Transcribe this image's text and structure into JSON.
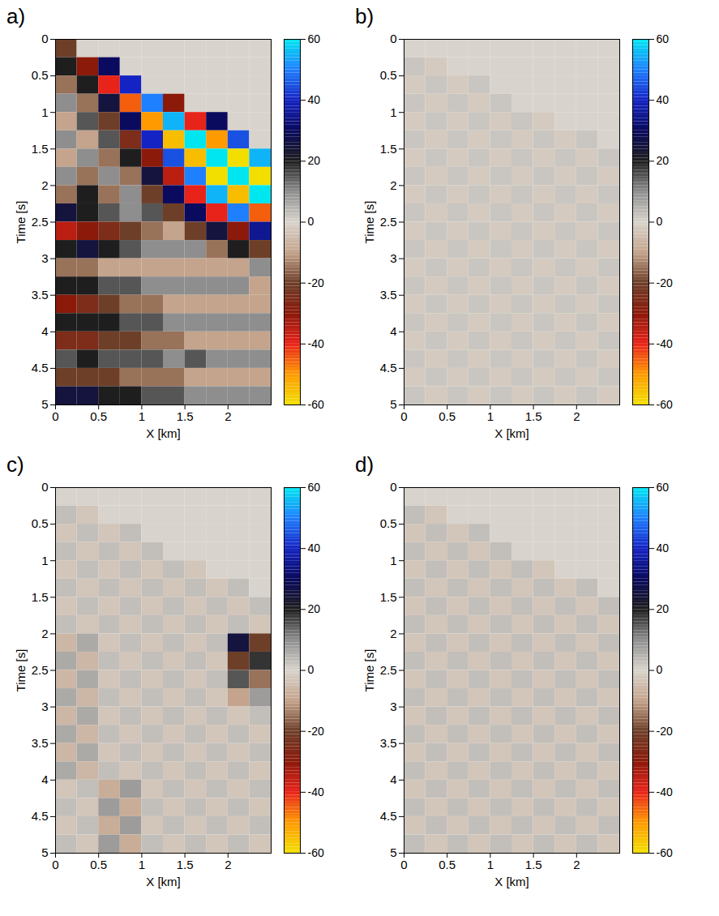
{
  "chart_data": [
    {
      "type": "heatmap",
      "label": "a)",
      "xlabel": "X [km]",
      "ylabel": "Time [s]",
      "xlim": [
        0,
        2.5
      ],
      "xticks": [
        0,
        0.5,
        1,
        1.5,
        2
      ],
      "ylim": [
        0,
        5
      ],
      "yticks": [
        0,
        0.5,
        1,
        1.5,
        2,
        2.5,
        3,
        3.5,
        4,
        4.5,
        5
      ],
      "x_bins": [
        0,
        0.25,
        0.5,
        0.75,
        1,
        1.25,
        1.5,
        1.75,
        2,
        2.25,
        2.5
      ],
      "y_bins": [
        0,
        0.25,
        0.5,
        0.75,
        1,
        1.25,
        1.5,
        1.75,
        2,
        2.25,
        2.5,
        2.75,
        3,
        3.25,
        3.5,
        3.75,
        4,
        4.25,
        4.5,
        4.75,
        5
      ],
      "cells": [
        [
          -20,
          0,
          0,
          0,
          0,
          0,
          0,
          0,
          0,
          0
        ],
        [
          20,
          -30,
          30,
          0,
          0,
          0,
          0,
          0,
          0,
          0
        ],
        [
          -15,
          20,
          -40,
          40,
          0,
          0,
          0,
          0,
          0,
          0
        ],
        [
          10,
          -15,
          25,
          -45,
          50,
          -30,
          0,
          0,
          0,
          0
        ],
        [
          -10,
          15,
          -20,
          30,
          -50,
          55,
          -40,
          30,
          0,
          0
        ],
        [
          10,
          -10,
          15,
          -25,
          40,
          -55,
          60,
          -50,
          45,
          0
        ],
        [
          -10,
          10,
          -15,
          20,
          -30,
          45,
          -55,
          60,
          -60,
          55
        ],
        [
          10,
          -15,
          10,
          -15,
          25,
          -35,
          50,
          -60,
          60,
          -60
        ],
        [
          -15,
          20,
          -15,
          10,
          -20,
          30,
          -40,
          55,
          -55,
          60
        ],
        [
          25,
          20,
          15,
          10,
          15,
          -20,
          30,
          -40,
          50,
          -45
        ],
        [
          -35,
          -30,
          -25,
          -20,
          -15,
          -10,
          -20,
          25,
          -30,
          35
        ],
        [
          20,
          25,
          20,
          15,
          10,
          10,
          10,
          -15,
          20,
          -20
        ],
        [
          -15,
          -15,
          -10,
          -10,
          -10,
          -10,
          -10,
          -10,
          -10,
          10
        ],
        [
          20,
          20,
          15,
          15,
          10,
          10,
          10,
          10,
          10,
          -10
        ],
        [
          -30,
          -25,
          -20,
          -15,
          -15,
          -10,
          -10,
          -10,
          -10,
          -10
        ],
        [
          20,
          20,
          20,
          15,
          15,
          10,
          10,
          10,
          10,
          10
        ],
        [
          -25,
          -25,
          -20,
          -20,
          -15,
          -15,
          -10,
          -10,
          -10,
          -10
        ],
        [
          15,
          20,
          15,
          15,
          15,
          10,
          15,
          10,
          10,
          10
        ],
        [
          -20,
          -20,
          -20,
          -15,
          -15,
          -15,
          -10,
          -10,
          -10,
          -10
        ],
        [
          25,
          25,
          20,
          20,
          15,
          15,
          10,
          10,
          10,
          10
        ]
      ],
      "colorbar": {
        "range": [
          -60,
          60
        ],
        "ticks": [
          -60,
          -40,
          -20,
          0,
          20,
          40,
          60
        ],
        "colors": [
          "#f2df00",
          "#ff9a00",
          "#e8231a",
          "#8b1a0a",
          "#6e3f28",
          "#c4a48c",
          "#d8d3cc",
          "#8e8e8e",
          "#1e1e1e",
          "#0a0a5e",
          "#1424c4",
          "#1e80ff",
          "#00e6f0"
        ]
      }
    },
    {
      "type": "heatmap",
      "label": "b)",
      "xlabel": "X [km]",
      "ylabel": "Time [s]",
      "xlim": [
        0,
        2.5
      ],
      "xticks": [
        0,
        0.5,
        1,
        1.5,
        2
      ],
      "ylim": [
        0,
        5
      ],
      "yticks": [
        0,
        0.5,
        1,
        1.5,
        2,
        2.5,
        3,
        3.5,
        4,
        4.5,
        5
      ],
      "x_bins": [
        0,
        0.25,
        0.5,
        0.75,
        1,
        1.25,
        1.5,
        1.75,
        2,
        2.25,
        2.5
      ],
      "y_bins": [
        0,
        0.25,
        0.5,
        0.75,
        1,
        1.25,
        1.5,
        1.75,
        2,
        2.25,
        2.5,
        2.75,
        3,
        3.25,
        3.5,
        3.75,
        4,
        4.25,
        4.5,
        4.75,
        5
      ],
      "cells": [
        [
          0,
          0,
          0,
          0,
          0,
          0,
          0,
          0,
          0,
          0
        ],
        [
          2,
          -2,
          0,
          0,
          0,
          0,
          0,
          0,
          0,
          0
        ],
        [
          -2,
          2,
          -2,
          2,
          0,
          0,
          0,
          0,
          0,
          0
        ],
        [
          2,
          -2,
          2,
          -2,
          2,
          0,
          0,
          0,
          0,
          0
        ],
        [
          -2,
          2,
          -2,
          2,
          -2,
          2,
          -2,
          0,
          0,
          0
        ],
        [
          2,
          -2,
          2,
          -2,
          2,
          -2,
          2,
          -2,
          2,
          0
        ],
        [
          -2,
          2,
          -2,
          2,
          -2,
          2,
          -2,
          2,
          -2,
          2
        ],
        [
          2,
          -2,
          2,
          -2,
          2,
          -2,
          2,
          -2,
          2,
          -2
        ],
        [
          -2,
          2,
          -2,
          2,
          -2,
          2,
          -2,
          2,
          -2,
          2
        ],
        [
          2,
          -2,
          2,
          -2,
          2,
          -2,
          2,
          -2,
          2,
          -2
        ],
        [
          -2,
          2,
          -2,
          2,
          -2,
          2,
          -2,
          2,
          -2,
          2
        ],
        [
          2,
          -2,
          2,
          -2,
          2,
          -2,
          2,
          -2,
          2,
          -2
        ],
        [
          -2,
          2,
          -2,
          2,
          -2,
          2,
          -2,
          2,
          -2,
          2
        ],
        [
          2,
          -2,
          2,
          -2,
          2,
          -2,
          2,
          -2,
          2,
          -2
        ],
        [
          -2,
          2,
          -2,
          2,
          -2,
          2,
          -2,
          2,
          -2,
          2
        ],
        [
          2,
          -2,
          2,
          -2,
          2,
          -2,
          2,
          -2,
          2,
          -2
        ],
        [
          -2,
          2,
          -2,
          2,
          -2,
          2,
          -2,
          2,
          -2,
          2
        ],
        [
          2,
          -2,
          2,
          -2,
          2,
          -2,
          2,
          -2,
          2,
          -2
        ],
        [
          -2,
          2,
          -2,
          2,
          -2,
          2,
          -2,
          2,
          -2,
          2
        ],
        [
          2,
          -2,
          2,
          -2,
          2,
          -2,
          2,
          -2,
          2,
          -2
        ]
      ],
      "colorbar": {
        "range": [
          -60,
          60
        ],
        "ticks": [
          -60,
          -40,
          -20,
          0,
          20,
          40,
          60
        ],
        "colors": [
          "#f2df00",
          "#ff9a00",
          "#e8231a",
          "#8b1a0a",
          "#6e3f28",
          "#c4a48c",
          "#d8d3cc",
          "#8e8e8e",
          "#1e1e1e",
          "#0a0a5e",
          "#1424c4",
          "#1e80ff",
          "#00e6f0"
        ]
      }
    },
    {
      "type": "heatmap",
      "label": "c)",
      "xlabel": "X [km]",
      "ylabel": "Time [s]",
      "xlim": [
        0,
        2.5
      ],
      "xticks": [
        0,
        0.5,
        1,
        1.5,
        2
      ],
      "ylim": [
        0,
        5
      ],
      "yticks": [
        0,
        0.5,
        1,
        1.5,
        2,
        2.5,
        3,
        3.5,
        4,
        4.5,
        5
      ],
      "x_bins": [
        0,
        0.25,
        0.5,
        0.75,
        1,
        1.25,
        1.5,
        1.75,
        2,
        2.25,
        2.5
      ],
      "y_bins": [
        0,
        0.25,
        0.5,
        0.75,
        1,
        1.25,
        1.5,
        1.75,
        2,
        2.25,
        2.5,
        2.75,
        3,
        3.25,
        3.5,
        3.75,
        4,
        4.25,
        4.5,
        4.75,
        5
      ],
      "cells": [
        [
          0,
          0,
          0,
          0,
          0,
          0,
          0,
          0,
          0,
          0
        ],
        [
          3,
          -3,
          0,
          0,
          0,
          0,
          0,
          0,
          0,
          0
        ],
        [
          -3,
          3,
          -3,
          3,
          0,
          0,
          0,
          0,
          0,
          0
        ],
        [
          3,
          -3,
          3,
          -3,
          3,
          0,
          0,
          0,
          0,
          0
        ],
        [
          -3,
          3,
          -3,
          3,
          -3,
          3,
          -3,
          0,
          0,
          0
        ],
        [
          3,
          -3,
          3,
          -3,
          3,
          -3,
          3,
          -3,
          3,
          0
        ],
        [
          -3,
          3,
          -3,
          3,
          -3,
          3,
          -3,
          3,
          -3,
          3
        ],
        [
          3,
          -3,
          3,
          -3,
          3,
          -3,
          3,
          -3,
          3,
          -3
        ],
        [
          -6,
          6,
          -3,
          3,
          -3,
          3,
          -3,
          3,
          25,
          -20
        ],
        [
          6,
          -6,
          3,
          -3,
          3,
          -3,
          3,
          -3,
          -20,
          18
        ],
        [
          -6,
          6,
          -3,
          3,
          -3,
          3,
          -3,
          3,
          15,
          -15
        ],
        [
          6,
          -6,
          3,
          -3,
          3,
          -3,
          3,
          -3,
          -10,
          8
        ],
        [
          -6,
          6,
          -3,
          3,
          -3,
          3,
          -3,
          3,
          -3,
          3
        ],
        [
          6,
          -6,
          3,
          -3,
          3,
          -3,
          3,
          -3,
          3,
          -3
        ],
        [
          -6,
          6,
          -3,
          3,
          -3,
          3,
          -3,
          3,
          -3,
          3
        ],
        [
          6,
          -6,
          3,
          -3,
          3,
          -3,
          3,
          -3,
          3,
          -3
        ],
        [
          -3,
          3,
          -8,
          8,
          -3,
          3,
          -3,
          3,
          -3,
          3
        ],
        [
          3,
          -3,
          8,
          -8,
          3,
          -3,
          3,
          -3,
          3,
          -3
        ],
        [
          -3,
          3,
          -8,
          8,
          -3,
          3,
          -3,
          3,
          -3,
          3
        ],
        [
          3,
          -3,
          8,
          -8,
          3,
          -3,
          3,
          -3,
          3,
          -3
        ]
      ],
      "colorbar": {
        "range": [
          -60,
          60
        ],
        "ticks": [
          -60,
          -40,
          -20,
          0,
          20,
          40,
          60
        ],
        "colors": [
          "#f2df00",
          "#ff9a00",
          "#e8231a",
          "#8b1a0a",
          "#6e3f28",
          "#c4a48c",
          "#d8d3cc",
          "#8e8e8e",
          "#1e1e1e",
          "#0a0a5e",
          "#1424c4",
          "#1e80ff",
          "#00e6f0"
        ]
      }
    },
    {
      "type": "heatmap",
      "label": "d)",
      "xlabel": "X [km]",
      "ylabel": "Time [s]",
      "xlim": [
        0,
        2.5
      ],
      "xticks": [
        0,
        0.5,
        1,
        1.5,
        2
      ],
      "ylim": [
        0,
        5
      ],
      "yticks": [
        0,
        0.5,
        1,
        1.5,
        2,
        2.5,
        3,
        3.5,
        4,
        4.5,
        5
      ],
      "x_bins": [
        0,
        0.25,
        0.5,
        0.75,
        1,
        1.25,
        1.5,
        1.75,
        2,
        2.25,
        2.5
      ],
      "y_bins": [
        0,
        0.25,
        0.5,
        0.75,
        1,
        1.25,
        1.5,
        1.75,
        2,
        2.25,
        2.5,
        2.75,
        3,
        3.25,
        3.5,
        3.75,
        4,
        4.25,
        4.5,
        4.75,
        5
      ],
      "cells": [
        [
          0,
          0,
          0,
          0,
          0,
          0,
          0,
          0,
          0,
          0
        ],
        [
          3,
          -3,
          0,
          0,
          0,
          0,
          0,
          0,
          0,
          0
        ],
        [
          -3,
          3,
          -3,
          3,
          0,
          0,
          0,
          0,
          0,
          0
        ],
        [
          3,
          -3,
          3,
          -3,
          3,
          0,
          0,
          0,
          0,
          0
        ],
        [
          -3,
          3,
          -3,
          3,
          -3,
          3,
          -3,
          0,
          0,
          0
        ],
        [
          3,
          -3,
          3,
          -3,
          3,
          -3,
          3,
          -3,
          3,
          0
        ],
        [
          -3,
          3,
          -3,
          3,
          -3,
          3,
          -3,
          3,
          -3,
          3
        ],
        [
          3,
          -3,
          3,
          -3,
          3,
          -3,
          3,
          -3,
          3,
          -3
        ],
        [
          -3,
          3,
          -3,
          3,
          -3,
          3,
          -3,
          3,
          -3,
          3
        ],
        [
          3,
          -3,
          3,
          -3,
          3,
          -3,
          3,
          -3,
          3,
          -3
        ],
        [
          -3,
          3,
          -3,
          3,
          -3,
          3,
          -3,
          3,
          -3,
          3
        ],
        [
          3,
          -3,
          3,
          -3,
          3,
          -3,
          3,
          -3,
          3,
          -3
        ],
        [
          -3,
          3,
          -3,
          3,
          -3,
          3,
          -3,
          3,
          -3,
          3
        ],
        [
          3,
          -3,
          3,
          -3,
          3,
          -3,
          3,
          -3,
          3,
          -3
        ],
        [
          -3,
          3,
          -3,
          3,
          -3,
          3,
          -3,
          3,
          -3,
          3
        ],
        [
          3,
          -3,
          3,
          -3,
          3,
          -3,
          3,
          -3,
          3,
          -3
        ],
        [
          -3,
          3,
          -3,
          3,
          -3,
          3,
          -3,
          3,
          -3,
          3
        ],
        [
          3,
          -3,
          3,
          -3,
          3,
          -3,
          3,
          -3,
          3,
          -3
        ],
        [
          -3,
          3,
          -3,
          3,
          -3,
          3,
          -3,
          3,
          -3,
          3
        ],
        [
          3,
          -3,
          3,
          -3,
          3,
          -3,
          3,
          -3,
          3,
          -3
        ]
      ],
      "colorbar": {
        "range": [
          -60,
          60
        ],
        "ticks": [
          -60,
          -40,
          -20,
          0,
          20,
          40,
          60
        ],
        "colors": [
          "#f2df00",
          "#ff9a00",
          "#e8231a",
          "#8b1a0a",
          "#6e3f28",
          "#c4a48c",
          "#d8d3cc",
          "#8e8e8e",
          "#1e1e1e",
          "#0a0a5e",
          "#1424c4",
          "#1e80ff",
          "#00e6f0"
        ]
      }
    }
  ]
}
